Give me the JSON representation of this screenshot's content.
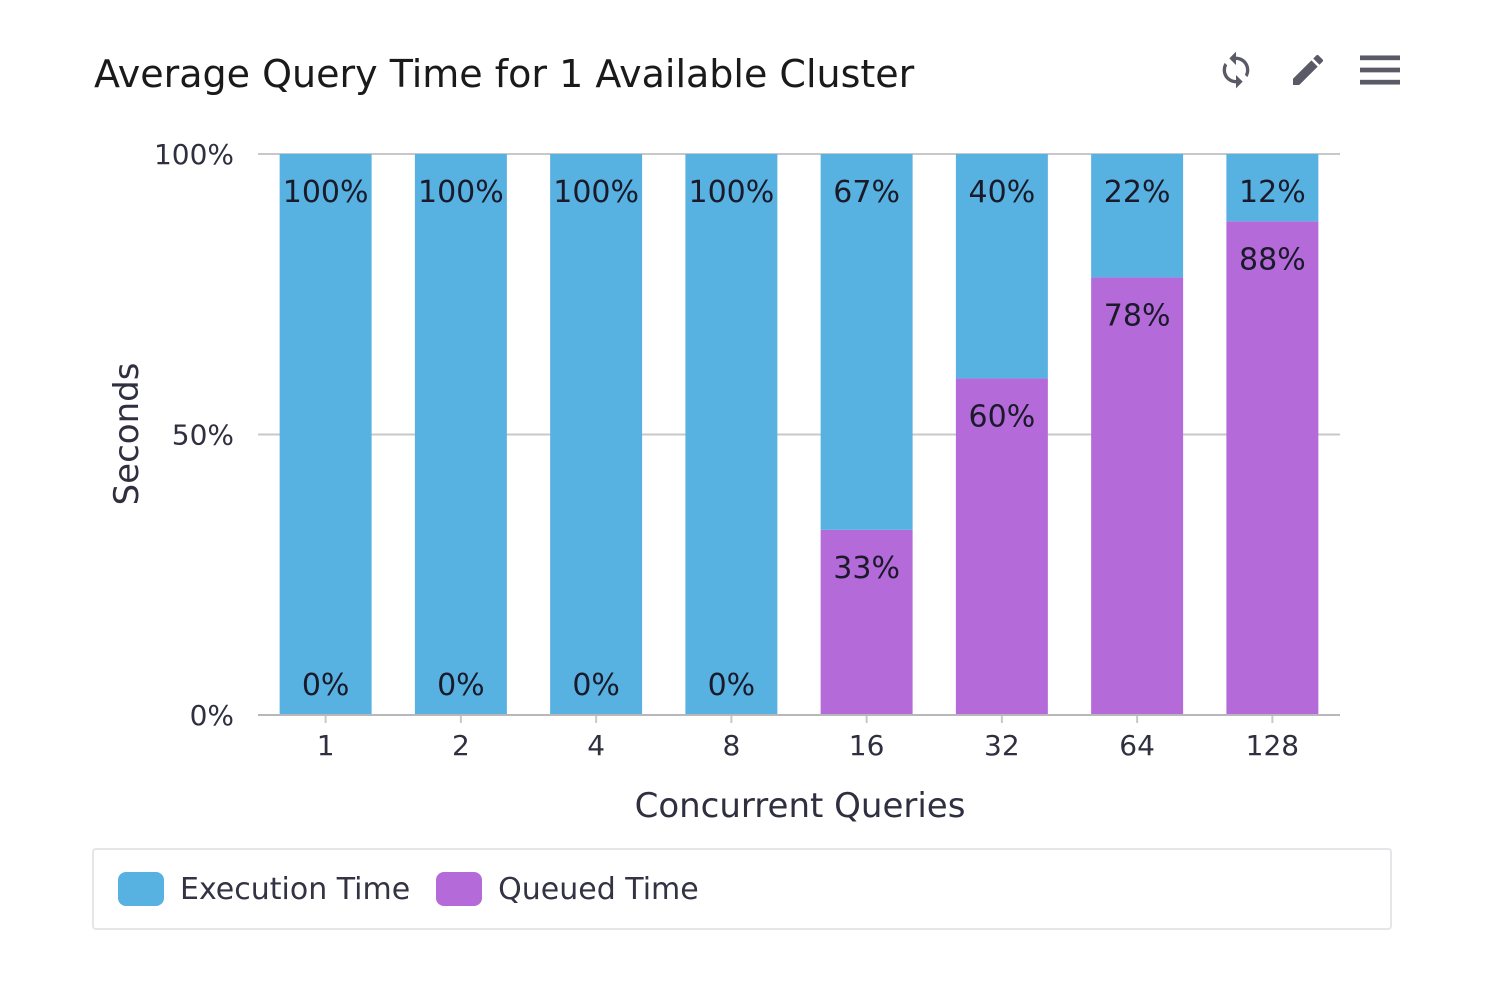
{
  "header": {
    "title": "Average Query Time for 1 Available Cluster",
    "icons": [
      "refresh-icon",
      "pencil-icon",
      "menu-icon"
    ]
  },
  "colors": {
    "execution": "#57b2e1",
    "queued": "#b46ad9",
    "grid": "#c8c8c8",
    "axis_text": "#2f2f3f"
  },
  "chart_data": {
    "type": "bar",
    "stacked": "percent",
    "title": "Average Query Time for 1 Available Cluster",
    "xlabel": "Concurrent Queries",
    "ylabel": "Seconds",
    "categories": [
      "1",
      "2",
      "4",
      "8",
      "16",
      "32",
      "64",
      "128"
    ],
    "series": [
      {
        "name": "Execution Time",
        "values": [
          100,
          100,
          100,
          100,
          67,
          40,
          22,
          12
        ],
        "labels": [
          "100%",
          "100%",
          "100%",
          "100%",
          "67%",
          "40%",
          "22%",
          "12%"
        ]
      },
      {
        "name": "Queued Time",
        "values": [
          0,
          0,
          0,
          0,
          33,
          60,
          78,
          88
        ],
        "labels": [
          "0%",
          "0%",
          "0%",
          "0%",
          "33%",
          "60%",
          "78%",
          "88%"
        ]
      }
    ],
    "ylim": [
      0,
      100
    ],
    "yticks": [
      0,
      50,
      100
    ],
    "ytick_labels": [
      "0%",
      "50%",
      "100%"
    ],
    "grid": true,
    "legend_position": "bottom"
  },
  "legend": {
    "items": [
      {
        "label": "Execution Time"
      },
      {
        "label": "Queued Time"
      }
    ]
  }
}
